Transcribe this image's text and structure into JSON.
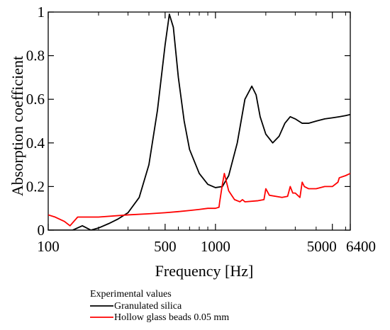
{
  "chart_data": {
    "type": "line",
    "xlabel": "Frequency [Hz]",
    "ylabel": "Absorption coefficient",
    "x_scale": "log",
    "xlim": [
      100,
      6400
    ],
    "ylim": [
      0,
      1
    ],
    "x_ticks": [
      100,
      500,
      1000,
      5000,
      6400
    ],
    "x_tick_labels": [
      "100",
      "500",
      "1000",
      "5000",
      "6400"
    ],
    "y_ticks": [
      0,
      0.2,
      0.4,
      0.6,
      0.8,
      1
    ],
    "y_tick_labels": [
      "0",
      "0.2",
      "0.4",
      "0.6",
      "0.8",
      "1"
    ],
    "grid": false,
    "legend": {
      "title": "Experimental values",
      "placement": "below chart"
    },
    "series": [
      {
        "name": "Granulated silica",
        "color": "#000000",
        "x": [
          100,
          140,
          160,
          180,
          200,
          230,
          260,
          300,
          350,
          400,
          450,
          500,
          530,
          560,
          600,
          650,
          700,
          800,
          900,
          1000,
          1100,
          1200,
          1350,
          1500,
          1650,
          1750,
          1850,
          2000,
          2200,
          2400,
          2600,
          2800,
          3000,
          3300,
          3600,
          4000,
          4500,
          5000,
          5500,
          6000,
          6400
        ],
        "y": [
          0.0,
          0.0,
          0.02,
          0.0,
          0.01,
          0.03,
          0.05,
          0.08,
          0.15,
          0.3,
          0.55,
          0.85,
          0.99,
          0.93,
          0.7,
          0.5,
          0.37,
          0.26,
          0.21,
          0.195,
          0.2,
          0.25,
          0.4,
          0.6,
          0.66,
          0.62,
          0.52,
          0.44,
          0.4,
          0.43,
          0.49,
          0.52,
          0.51,
          0.49,
          0.49,
          0.5,
          0.51,
          0.515,
          0.52,
          0.525,
          0.53
        ]
      },
      {
        "name": "Hollow glass beads 0.05 mm",
        "color": "#ff0000",
        "x": [
          100,
          110,
          125,
          135,
          150,
          200,
          300,
          400,
          500,
          600,
          700,
          800,
          900,
          1000,
          1050,
          1060,
          1100,
          1130,
          1200,
          1300,
          1400,
          1450,
          1500,
          1800,
          1950,
          2000,
          2100,
          2500,
          2700,
          2800,
          2900,
          3000,
          3200,
          3300,
          3400,
          3600,
          4000,
          4500,
          5000,
          5400,
          5500,
          6000,
          6400
        ],
        "y": [
          0.07,
          0.06,
          0.04,
          0.02,
          0.06,
          0.06,
          0.07,
          0.075,
          0.08,
          0.085,
          0.09,
          0.095,
          0.1,
          0.1,
          0.105,
          0.13,
          0.21,
          0.26,
          0.18,
          0.14,
          0.13,
          0.14,
          0.13,
          0.135,
          0.14,
          0.19,
          0.16,
          0.15,
          0.155,
          0.2,
          0.17,
          0.17,
          0.15,
          0.22,
          0.2,
          0.19,
          0.19,
          0.2,
          0.2,
          0.22,
          0.24,
          0.25,
          0.26
        ]
      }
    ]
  }
}
